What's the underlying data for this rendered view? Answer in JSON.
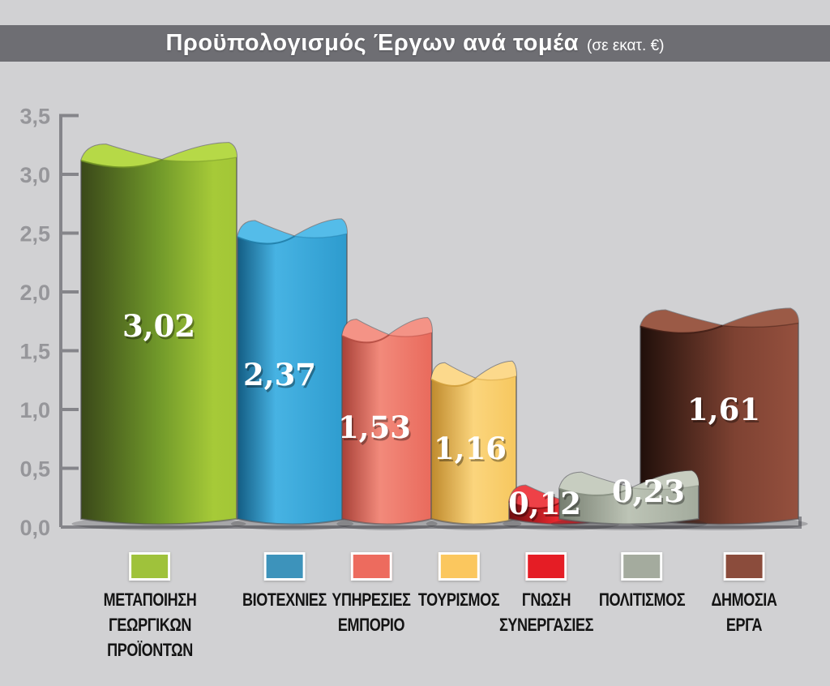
{
  "title": {
    "main": "Προϋπολογισμός Έργων ανά τομέα",
    "unit": "(σε εκατ. €)"
  },
  "colors": {
    "background": "#d1d1d3",
    "title_band": "#6e6e73",
    "title_text": "#ffffff",
    "axis": "#85858a",
    "axis_label": "#96969a",
    "value_label": "#ffffff",
    "legend_label": "#141414",
    "legend_swatch_border": "#ffffff"
  },
  "chart_data": {
    "type": "bar",
    "title": "Προϋπολογισμός Έργων ανά τομέα",
    "unit": "σε εκατ. €",
    "xlabel": "",
    "ylabel": "",
    "ylim": [
      0,
      3.5
    ],
    "ytick_step": 0.5,
    "grid": false,
    "legend_position": "bottom",
    "yticks": [
      {
        "label": "3,5",
        "value": 3.5
      },
      {
        "label": "3,0",
        "value": 3.0
      },
      {
        "label": "2,5",
        "value": 2.5
      },
      {
        "label": "2,0",
        "value": 2.0
      },
      {
        "label": "1,5",
        "value": 1.5
      },
      {
        "label": "1,0",
        "value": 1.0
      },
      {
        "label": "0,5",
        "value": 0.5
      },
      {
        "label": "0,0",
        "value": 0.0
      }
    ],
    "categories": [
      "ΜΕΤΑΠΟΙΗΣΗ ΓΕΩΡΓΙΚΩΝ ΠΡΟΪΟΝΤΩΝ",
      "ΒΙΟΤΕΧΝΙΕΣ",
      "ΥΠΗΡΕΣΙΕΣ ΕΜΠΟΡΙΟ",
      "ΤΟΥΡΙΣΜΟΣ",
      "ΓΝΩΣΗ ΣΥΝΕΡΓΑΣΙΕΣ",
      "ΠΟΛΙΤΙΣΜΟΣ",
      "ΔΗΜΟΣΙΑ ΕΡΓΑ"
    ],
    "values": [
      3.02,
      2.37,
      1.53,
      1.16,
      0.12,
      0.23,
      1.61
    ],
    "bars": [
      {
        "id": "metapoiisi-georgikon-proionton",
        "legend_lines": [
          "ΜΕΤΑΠΟΙΗΣΗ",
          "ΓΕΩΡΓΙΚΩΝ",
          "ΠΡΟΪΟΝΤΩΝ"
        ],
        "value": 3.02,
        "value_label": "3,02",
        "swatch": "#9fc23b",
        "gradient": [
          [
            0,
            "#3a4819"
          ],
          [
            0.5,
            "#71992a"
          ],
          [
            0.85,
            "#a6ca38"
          ],
          [
            1,
            "#a3c636"
          ]
        ],
        "cap": "#b6d947",
        "cap_edge": "#6f8f25"
      },
      {
        "id": "viotechnies",
        "legend_lines": [
          "ΒΙΟΤΕΧΝΙΕΣ"
        ],
        "value": 2.37,
        "value_label": "2,37",
        "swatch": "#3d93bb",
        "gradient": [
          [
            0,
            "#135d84"
          ],
          [
            0.35,
            "#47b3e3"
          ],
          [
            1,
            "#2d9bce"
          ]
        ],
        "cap": "#54bce9",
        "cap_edge": "#1f7ba6"
      },
      {
        "id": "ypiresies-emporio",
        "legend_lines": [
          "ΥΠΗΡΕΣΙΕΣ",
          "ΕΜΠΟΡΙΟ"
        ],
        "value": 1.53,
        "value_label": "1,53",
        "swatch": "#ed6b5e",
        "gradient": [
          [
            0,
            "#a84138"
          ],
          [
            0.42,
            "#f28a7b"
          ],
          [
            1,
            "#e96a5c"
          ]
        ],
        "cap": "#f49386",
        "cap_edge": "#b14a40"
      },
      {
        "id": "tourismos",
        "legend_lines": [
          "ΤΟΥΡΙΣΜΟΣ"
        ],
        "value": 1.16,
        "value_label": "1,16",
        "swatch": "#fbc75e",
        "gradient": [
          [
            0,
            "#bf8a2d"
          ],
          [
            0.5,
            "#fbd57d"
          ],
          [
            1,
            "#f6c75e"
          ]
        ],
        "cap": "#fcd98c",
        "cap_edge": "#cf9c38"
      },
      {
        "id": "gnosi-synergasies",
        "legend_lines": [
          "ΓΝΩΣΗ",
          "ΣΥΝΕΡΓΑΣΙΕΣ"
        ],
        "value": 0.12,
        "value_label": "0,12",
        "swatch": "#e51d25",
        "gradient": [
          [
            0,
            "#6f0c0f"
          ],
          [
            0.45,
            "#e8272e"
          ],
          [
            1,
            "#c01218"
          ]
        ],
        "cap": "#ee4147",
        "cap_edge": "#8c0f13"
      },
      {
        "id": "politismos",
        "legend_lines": [
          "ΠΟΛΙΤΙΣΜΟΣ"
        ],
        "value": 0.23,
        "value_label": "0,23",
        "swatch": "#a4ab9e",
        "gradient": [
          [
            0,
            "#767e70"
          ],
          [
            0.5,
            "#bdc4b6"
          ],
          [
            1,
            "#a3ab9d"
          ]
        ],
        "cap": "#c7cdc0",
        "cap_edge": "#848c7e"
      },
      {
        "id": "dimosia-erga",
        "legend_lines": [
          "ΔΗΜΟΣΙΑ",
          "ΕΡΓΑ"
        ],
        "value": 1.61,
        "value_label": "1,61",
        "swatch": "#8b4c3c",
        "gradient": [
          [
            0,
            "#200f0a"
          ],
          [
            0.6,
            "#7e4232"
          ],
          [
            1,
            "#95503e"
          ]
        ],
        "cap": "#9b5a46",
        "cap_edge": "#3f1d15"
      }
    ]
  }
}
